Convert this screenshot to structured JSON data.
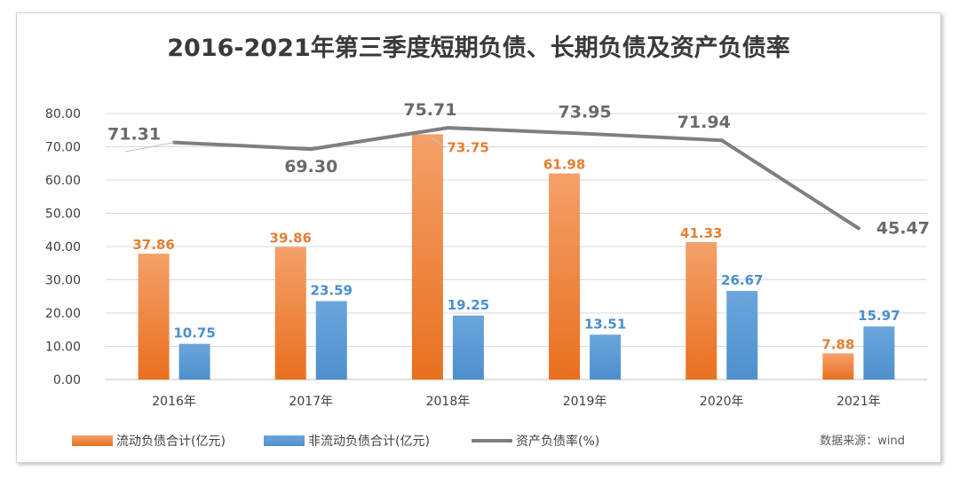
{
  "chart_data": {
    "type": "bar",
    "title": "2016-2021年第三季度短期负债、长期负债及资产负债率",
    "categories": [
      "2016年",
      "2017年",
      "2018年",
      "2019年",
      "2020年",
      "2021年"
    ],
    "ylim": [
      0,
      80
    ],
    "yticks": [
      "0.00",
      "10.00",
      "20.00",
      "30.00",
      "40.00",
      "50.00",
      "60.00",
      "70.00",
      "80.00"
    ],
    "grid": true,
    "legend_position": "bottom",
    "series": [
      {
        "name": "流动负债合计(亿元)",
        "type": "bar",
        "color": "#ed7d31",
        "values": [
          37.86,
          39.86,
          73.75,
          61.98,
          41.33,
          7.88
        ],
        "labels": [
          "37.86",
          "39.86",
          "73.75",
          "61.98",
          "41.33",
          "7.88"
        ]
      },
      {
        "name": "非流动负债合计(亿元)",
        "type": "bar",
        "color": "#5b9bd5",
        "values": [
          10.75,
          23.59,
          19.25,
          13.51,
          26.67,
          15.97
        ],
        "labels": [
          "10.75",
          "23.59",
          "19.25",
          "13.51",
          "26.67",
          "15.97"
        ]
      },
      {
        "name": "资产负债率(%)",
        "type": "line",
        "color": "#7f7f7f",
        "values": [
          71.31,
          69.3,
          75.71,
          73.95,
          71.94,
          45.47
        ],
        "labels": [
          "71.31",
          "69.30",
          "75.71",
          "73.95",
          "71.94",
          "45.47"
        ]
      }
    ],
    "source": "数据来源：wind"
  }
}
